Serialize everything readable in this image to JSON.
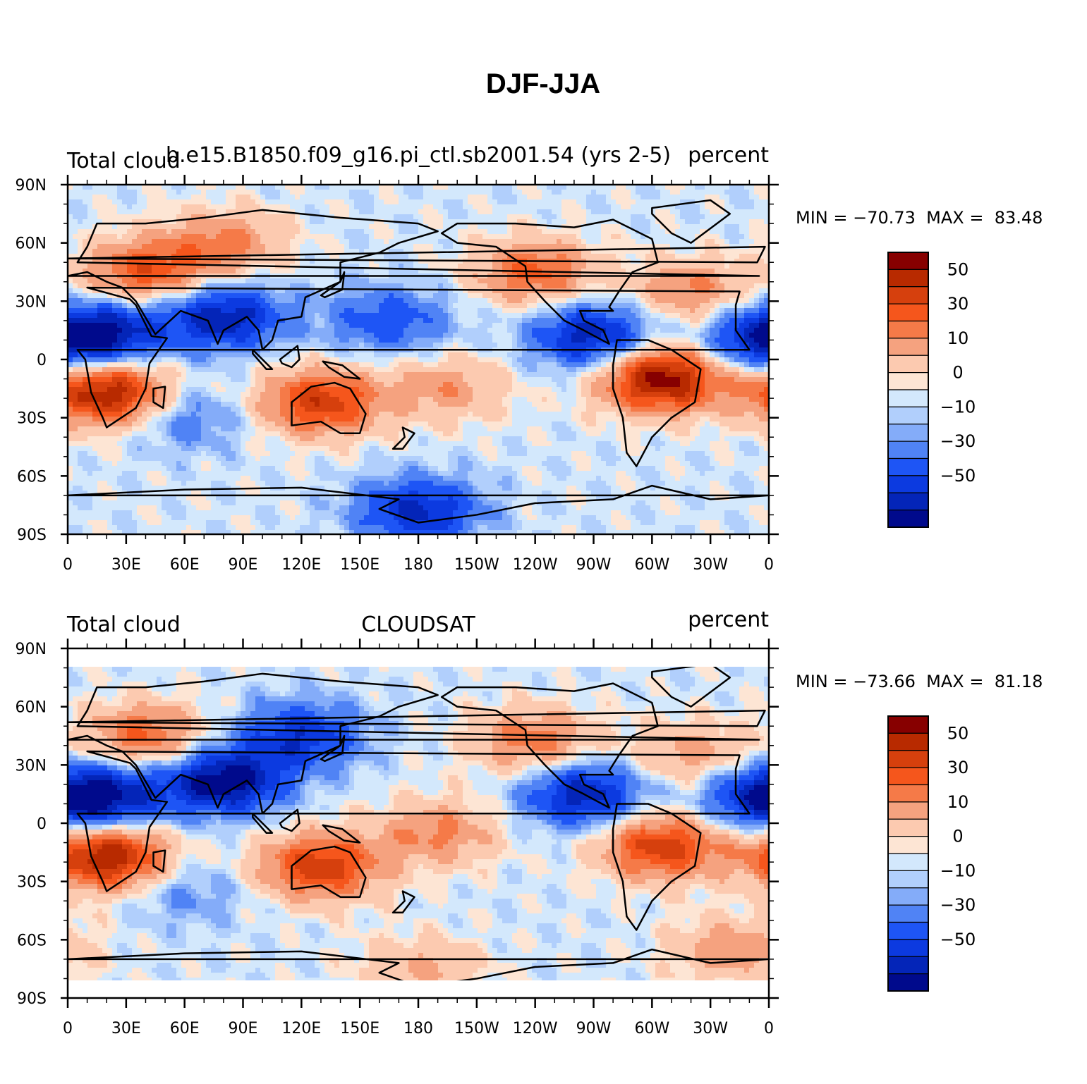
{
  "figure": {
    "title": "DJF-JJA"
  },
  "panels": [
    {
      "id": "top",
      "left_label": "Total cloud",
      "center_label": "b.e15.B1850.f09_g16.pi_ctl.sb2001.54 (yrs 2-5)",
      "right_label": "percent",
      "stats": "MIN = −70.73  MAX =  83.48",
      "min": -70.73,
      "max": 83.48
    },
    {
      "id": "bottom",
      "left_label": "Total cloud",
      "center_label": "CLOUDSAT",
      "right_label": "percent",
      "stats": "MIN = −73.66  MAX =  81.18",
      "min": -73.66,
      "max": 81.18
    }
  ],
  "axes": {
    "lat_ticks": [
      "90N",
      "60N",
      "30N",
      "0",
      "30S",
      "60S",
      "90S"
    ],
    "lat_values": [
      90,
      60,
      30,
      0,
      -30,
      -60,
      -90
    ],
    "lon_ticks": [
      "0",
      "30E",
      "60E",
      "90E",
      "120E",
      "150E",
      "180",
      "150W",
      "120W",
      "90W",
      "60W",
      "30W",
      "0"
    ],
    "lon_values": [
      0,
      30,
      60,
      90,
      120,
      150,
      180,
      210,
      240,
      270,
      300,
      330,
      360
    ]
  },
  "colorbar": {
    "labels": [
      "50",
      "30",
      "10",
      "0",
      "−10",
      "−30",
      "−50"
    ],
    "colors": [
      "#870000",
      "#b82a00",
      "#d6400d",
      "#f5561c",
      "#f57a48",
      "#f5a27f",
      "#fccab0",
      "#fde5d4",
      "#d3e8fc",
      "#b1cffc",
      "#84acf9",
      "#5083f5",
      "#1e55f5",
      "#0c3ae0",
      "#0425b8",
      "#000a8c"
    ]
  },
  "map_colors": {
    "land_outline": "#000000",
    "ocean_base": "#fde5d4"
  },
  "chart_data": {
    "type": "heatmap",
    "title": "DJF-JJA",
    "xlim": [
      0,
      360
    ],
    "ylim": [
      -90,
      90
    ],
    "panels": [
      {
        "name": "b.e15.B1850.f09_g16.pi_ctl.sb2001.54 (yrs 2-5)",
        "min": -70.73,
        "max": 83.48,
        "blobs": [
          {
            "lon": 20,
            "lat": -17,
            "value": 70
          },
          {
            "lon": 305,
            "lat": -10,
            "value": 75
          },
          {
            "lon": 130,
            "lat": -22,
            "value": 55
          },
          {
            "lon": 40,
            "lat": 45,
            "value": 45
          },
          {
            "lon": 240,
            "lat": 45,
            "value": 40
          },
          {
            "lon": 320,
            "lat": 35,
            "value": 30
          },
          {
            "lon": 195,
            "lat": -15,
            "value": 25
          },
          {
            "lon": 80,
            "lat": 60,
            "value": 30
          },
          {
            "lon": 80,
            "lat": 22,
            "value": -50
          },
          {
            "lon": 20,
            "lat": 13,
            "value": -45
          },
          {
            "lon": 270,
            "lat": 12,
            "value": -50
          },
          {
            "lon": 355,
            "lat": 10,
            "value": -40
          },
          {
            "lon": 180,
            "lat": -78,
            "value": -45
          },
          {
            "lon": 165,
            "lat": 20,
            "value": -30
          },
          {
            "lon": 60,
            "lat": -30,
            "value": -20
          }
        ]
      },
      {
        "name": "CLOUDSAT",
        "min": -73.66,
        "max": 81.18,
        "blobs": [
          {
            "lon": 20,
            "lat": -17,
            "value": 70
          },
          {
            "lon": 305,
            "lat": -12,
            "value": 55
          },
          {
            "lon": 130,
            "lat": -22,
            "value": 55
          },
          {
            "lon": 40,
            "lat": 45,
            "value": 40
          },
          {
            "lon": 240,
            "lat": 42,
            "value": 35
          },
          {
            "lon": 320,
            "lat": 35,
            "value": 25
          },
          {
            "lon": 190,
            "lat": -5,
            "value": 30
          },
          {
            "lon": 80,
            "lat": 22,
            "value": -60
          },
          {
            "lon": 20,
            "lat": 13,
            "value": -45
          },
          {
            "lon": 265,
            "lat": 15,
            "value": -50
          },
          {
            "lon": 355,
            "lat": 13,
            "value": -40
          },
          {
            "lon": 120,
            "lat": 45,
            "value": -40
          },
          {
            "lon": 180,
            "lat": -75,
            "value": 20
          },
          {
            "lon": 340,
            "lat": -65,
            "value": 25
          },
          {
            "lon": 60,
            "lat": -35,
            "value": -15
          }
        ]
      }
    ]
  }
}
